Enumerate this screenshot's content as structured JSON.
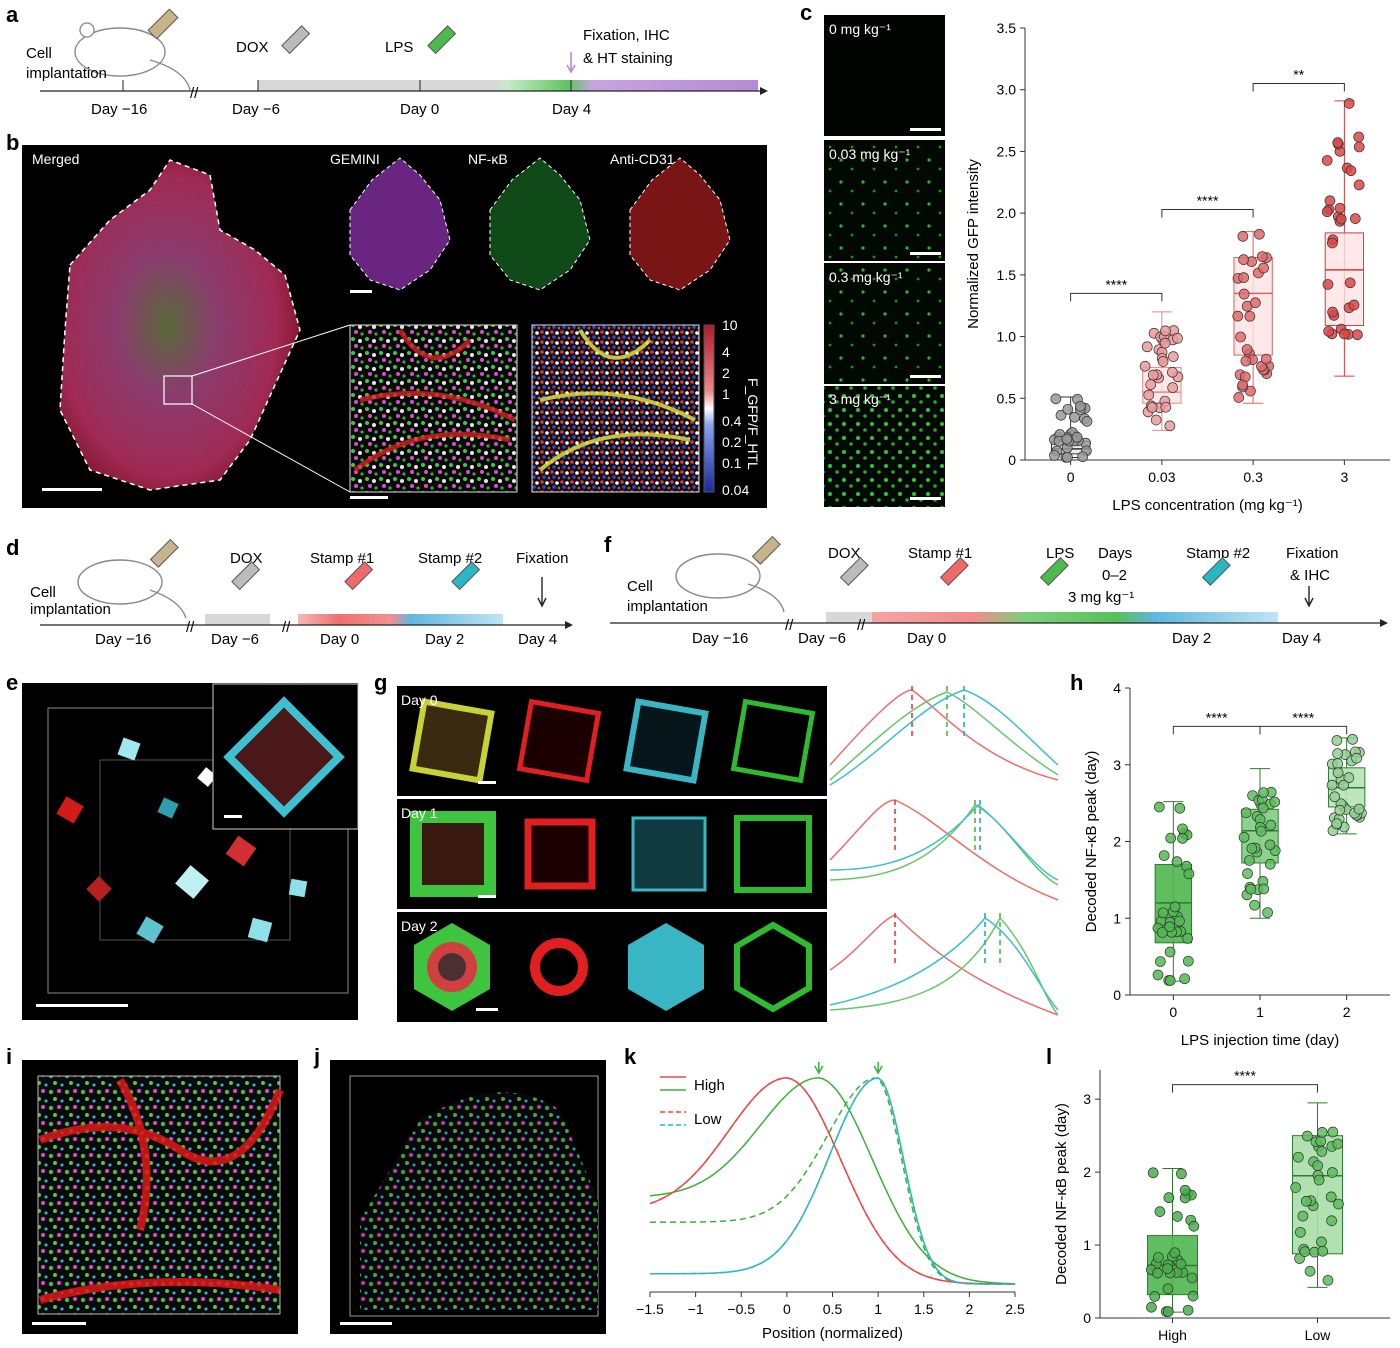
{
  "panels": {
    "a": {
      "letter": "a",
      "cell_implantation": [
        "Cell",
        "implantation"
      ],
      "dox": "DOX",
      "lps": "LPS",
      "fixation": [
        "Fixation, IHC",
        "& HT staining"
      ],
      "days": [
        "Day −16",
        "Day −6",
        "Day 0",
        "Day 4"
      ]
    },
    "b": {
      "letter": "b",
      "merged": "Merged",
      "channels": [
        "GEMINI",
        "NF-κB",
        "Anti-CD31"
      ],
      "colorbar_ticks": [
        "10",
        "4",
        "2",
        "1",
        "0.4",
        "0.2",
        "0.1",
        "0.04"
      ],
      "colorbar_label": "F_GFP/F_HTL"
    },
    "c": {
      "letter": "c",
      "image_labels": [
        "0 mg kg⁻¹",
        "0.03 mg kg⁻¹",
        "0.3 mg kg⁻¹",
        "3 mg kg⁻¹"
      ],
      "colors": {
        "gray": "#777777",
        "light_red": "#f0a0a0",
        "red": "#e06060",
        "dark_red": "#d23b3b"
      }
    },
    "d": {
      "letter": "d",
      "cell_implantation": [
        "Cell",
        "implantation"
      ],
      "dox": "DOX",
      "stamp1": "Stamp #1",
      "stamp2": "Stamp #2",
      "fixation": "Fixation",
      "days": [
        "Day −16",
        "Day −6",
        "Day 0",
        "Day 2",
        "Day 4"
      ]
    },
    "e": {
      "letter": "e"
    },
    "f": {
      "letter": "f",
      "cell_implantation": [
        "Cell",
        "implantation"
      ],
      "dox": "DOX",
      "stamp1": "Stamp #1",
      "lps": "LPS",
      "lps_days": [
        "Days",
        "0–2"
      ],
      "lps_dose": "3 mg kg⁻¹",
      "stamp2": "Stamp #2",
      "fixation": [
        "Fixation",
        "& IHC"
      ],
      "days": [
        "Day −16",
        "Day −6",
        "Day 0",
        "Day 2",
        "Day 4"
      ]
    },
    "g": {
      "letter": "g",
      "rows": [
        "Day 0",
        "Day 1",
        "Day 2"
      ]
    },
    "h": {
      "letter": "h"
    },
    "i": {
      "letter": "i"
    },
    "j": {
      "letter": "j"
    },
    "k": {
      "letter": "k",
      "legend": [
        "High",
        "Low"
      ]
    },
    "l": {
      "letter": "l"
    }
  },
  "chart_data": [
    {
      "id": "c",
      "type": "box",
      "xlabel": "LPS concentration (mg kg⁻¹)",
      "ylabel": "Normalized GFP intensity",
      "categories": [
        "0",
        "0.03",
        "0.3",
        "3"
      ],
      "ylim": [
        0,
        3.5
      ],
      "yticks": [
        "0",
        "0.5",
        "1.0",
        "1.5",
        "2.0",
        "2.5",
        "3.0",
        "3.5"
      ],
      "boxes": [
        {
          "min": 0.02,
          "q1": 0.05,
          "median": 0.09,
          "q3": 0.15,
          "max": 0.51
        },
        {
          "min": 0.24,
          "q1": 0.46,
          "median": 0.55,
          "q3": 0.75,
          "max": 1.2
        },
        {
          "min": 0.46,
          "q1": 0.85,
          "median": 1.35,
          "q3": 1.64,
          "max": 1.85
        },
        {
          "min": 0.68,
          "q1": 1.09,
          "median": 1.54,
          "q3": 1.84,
          "max": 2.91
        }
      ],
      "significance": [
        {
          "from": 0,
          "to": 1,
          "label": "****",
          "y": 1.35
        },
        {
          "from": 1,
          "to": 2,
          "label": "****",
          "y": 2.03
        },
        {
          "from": 2,
          "to": 3,
          "label": "**",
          "y": 3.05
        }
      ]
    },
    {
      "id": "h",
      "type": "box",
      "xlabel": "LPS injection time (day)",
      "ylabel": "Decoded NF-κB peak (day)",
      "categories": [
        "0",
        "1",
        "2"
      ],
      "ylim": [
        0,
        4
      ],
      "yticks": [
        "0",
        "1",
        "2",
        "3",
        "4"
      ],
      "boxes": [
        {
          "min": 0.18,
          "q1": 0.68,
          "median": 1.2,
          "q3": 1.7,
          "max": 2.52
        },
        {
          "min": 1.0,
          "q1": 1.72,
          "median": 2.14,
          "q3": 2.42,
          "max": 2.95
        },
        {
          "min": 2.1,
          "q1": 2.45,
          "median": 2.7,
          "q3": 2.96,
          "max": 3.35
        }
      ],
      "significance": [
        {
          "from": 0,
          "to": 1,
          "label": "****",
          "y": 3.5
        },
        {
          "from": 1,
          "to": 2,
          "label": "****",
          "y": 3.5
        }
      ]
    },
    {
      "id": "k",
      "type": "line",
      "xlabel": "Position (normalized)",
      "xlim": [
        -1.5,
        2.5
      ],
      "xticks": [
        "−1.5",
        "−1",
        "−0.5",
        "0",
        "0.5",
        "1",
        "1.5",
        "2",
        "2.5"
      ],
      "series": [
        {
          "name": "High",
          "color": "#e84a4a",
          "peak": 0.0
        },
        {
          "name": "High",
          "color": "#3cae3c",
          "peak": 0.35
        },
        {
          "name": "High",
          "color": "#2bb6c4",
          "peak": 1.0
        },
        {
          "name": "Low",
          "color": "#e84a4a",
          "peak": 0.0
        },
        {
          "name": "Low",
          "color": "#3cae3c",
          "peak": 0.98
        },
        {
          "name": "Low",
          "color": "#2bb6c4",
          "peak": 1.0
        }
      ]
    },
    {
      "id": "l",
      "type": "box",
      "ylabel": "Decoded NF-κB peak (day)",
      "categories": [
        "High",
        "Low"
      ],
      "ylim": [
        0,
        3.4
      ],
      "yticks": [
        "0",
        "1",
        "2",
        "3"
      ],
      "boxes": [
        {
          "min": 0.08,
          "q1": 0.32,
          "median": 0.72,
          "q3": 1.13,
          "max": 2.05
        },
        {
          "min": 0.42,
          "q1": 0.88,
          "median": 1.95,
          "q3": 2.5,
          "max": 2.95
        }
      ],
      "significance": [
        {
          "from": 0,
          "to": 1,
          "label": "****",
          "y": 3.2
        }
      ]
    }
  ]
}
